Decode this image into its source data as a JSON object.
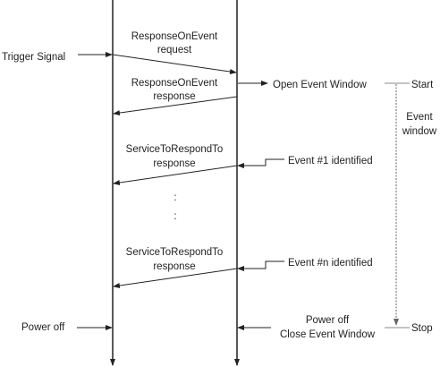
{
  "left_labels": {
    "trigger": "Trigger Signal",
    "power_off": "Power off"
  },
  "messages": {
    "req_line1": "ResponseOnEvent",
    "req_line2": "request",
    "resp_line1": "ResponseOnEvent",
    "resp_line2": "response",
    "svc1_line1": "ServiceToRespondTo",
    "svc1_line2": "response",
    "dots": ":",
    "svcn_line1": "ServiceToRespondTo",
    "svcn_line2": "response"
  },
  "right_labels": {
    "open_window": "Open Event Window",
    "start": "Start",
    "event_window_1": "Event",
    "event_window_2": "window",
    "event1": "Event #1 identified",
    "eventn": "Event #n identified",
    "power_off_2": "Power off",
    "close_window": "Close Event Window",
    "stop": "Stop"
  }
}
